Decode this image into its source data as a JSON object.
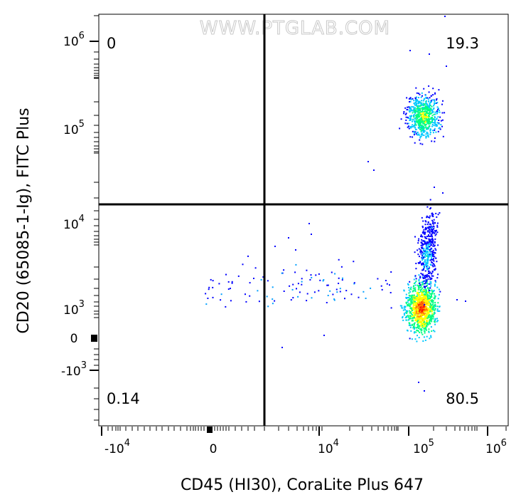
{
  "chart_data": {
    "type": "scatter",
    "title": "",
    "watermark": "WWW.PTGLAB.COM",
    "xlabel": "CD45 (HI30), CoraLite Plus 647",
    "ylabel": "CD20 (65085-1-Ig), FITC Plus",
    "x_scale": "biexponential",
    "y_scale": "biexponential",
    "x_ticks": [
      {
        "base": "-10",
        "exp": "4"
      },
      {
        "base": "0",
        "exp": ""
      },
      {
        "base": "10",
        "exp": "4"
      },
      {
        "base": "10",
        "exp": "5"
      },
      {
        "base": "10",
        "exp": "6"
      }
    ],
    "y_ticks": [
      {
        "base": "10",
        "exp": "6"
      },
      {
        "base": "10",
        "exp": "5"
      },
      {
        "base": "10",
        "exp": "4"
      },
      {
        "base": "10",
        "exp": "3"
      },
      {
        "base": "0",
        "exp": ""
      },
      {
        "base": "-10",
        "exp": "3"
      }
    ],
    "quadrants": {
      "top_left": "0",
      "top_right": "19.3",
      "bottom_left": "0.14",
      "bottom_right": "80.5"
    },
    "density_colors": [
      "#0000ff",
      "#00c8ff",
      "#00ff80",
      "#ffff00",
      "#ff8000",
      "#ff0000"
    ],
    "grid": false,
    "legend": "none"
  }
}
